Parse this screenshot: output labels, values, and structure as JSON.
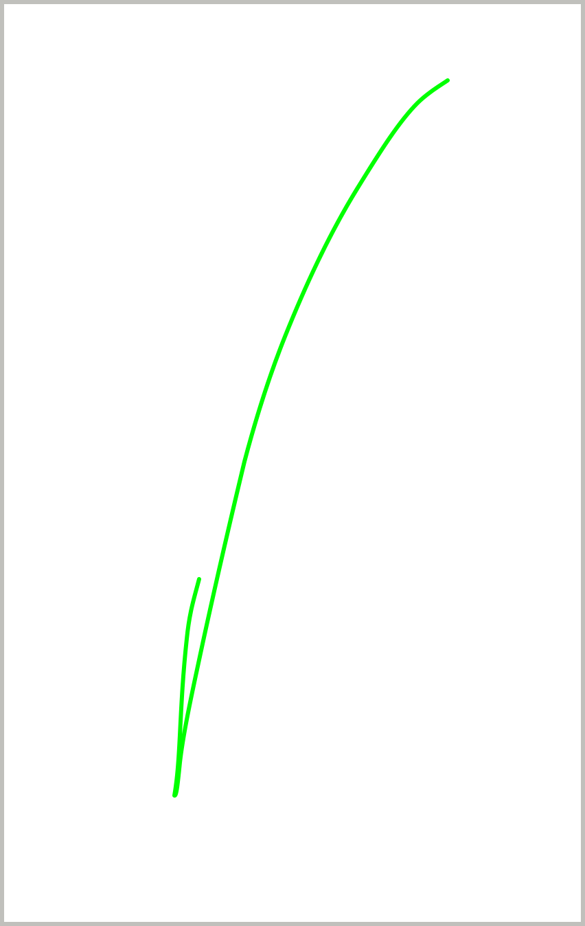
{
  "canvas": {
    "border_color": "#c0c0bc",
    "background_color": "#ffffff",
    "stroke_color": "#00ff00",
    "tool": "pen"
  }
}
